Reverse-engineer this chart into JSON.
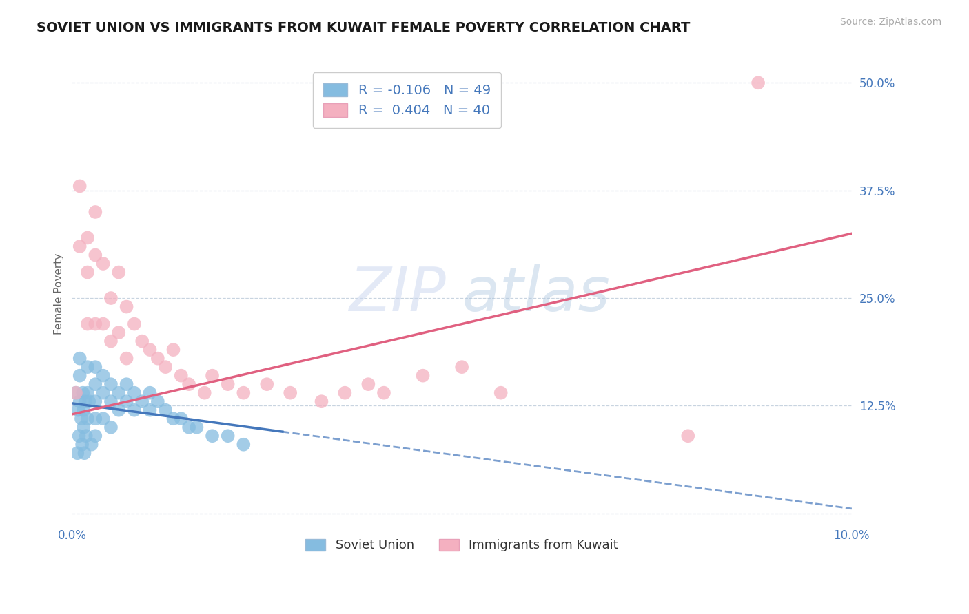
{
  "title": "SOVIET UNION VS IMMIGRANTS FROM KUWAIT FEMALE POVERTY CORRELATION CHART",
  "source": "Source: ZipAtlas.com",
  "ylabel": "Female Poverty",
  "xlim": [
    0.0,
    0.1
  ],
  "ylim": [
    -0.01,
    0.52
  ],
  "ytick_vals": [
    0.0,
    0.125,
    0.25,
    0.375,
    0.5
  ],
  "ytick_labels": [
    "",
    "12.5%",
    "25.0%",
    "37.5%",
    "50.0%"
  ],
  "xtick_vals": [
    0.0,
    0.1
  ],
  "xtick_labels": [
    "0.0%",
    "10.0%"
  ],
  "soviet_color": "#85bce0",
  "kuwait_color": "#f4b0c0",
  "soviet_line_color": "#4477bb",
  "kuwait_line_color": "#e06080",
  "background_color": "#ffffff",
  "grid_color": "#c8d4e0",
  "title_color": "#1a1a1a",
  "source_color": "#aaaaaa",
  "tick_color": "#4477bb",
  "watermark_zip_color": "#ccd8ec",
  "watermark_atlas_color": "#b8cce0",
  "legend_text_color": "#333333",
  "legend_RN_color": "#4477bb",
  "su_x": [
    0.0005,
    0.0007,
    0.0008,
    0.0009,
    0.001,
    0.001,
    0.001,
    0.0012,
    0.0013,
    0.0014,
    0.0015,
    0.0015,
    0.0016,
    0.0017,
    0.0018,
    0.002,
    0.002,
    0.002,
    0.0022,
    0.0025,
    0.003,
    0.003,
    0.003,
    0.003,
    0.003,
    0.004,
    0.004,
    0.004,
    0.005,
    0.005,
    0.005,
    0.006,
    0.006,
    0.007,
    0.007,
    0.008,
    0.008,
    0.009,
    0.01,
    0.01,
    0.011,
    0.012,
    0.013,
    0.014,
    0.015,
    0.016,
    0.018,
    0.02,
    0.022
  ],
  "su_y": [
    0.14,
    0.07,
    0.12,
    0.09,
    0.18,
    0.16,
    0.13,
    0.11,
    0.08,
    0.14,
    0.12,
    0.1,
    0.07,
    0.13,
    0.09,
    0.17,
    0.14,
    0.11,
    0.13,
    0.08,
    0.17,
    0.15,
    0.13,
    0.11,
    0.09,
    0.16,
    0.14,
    0.11,
    0.15,
    0.13,
    0.1,
    0.14,
    0.12,
    0.15,
    0.13,
    0.14,
    0.12,
    0.13,
    0.14,
    0.12,
    0.13,
    0.12,
    0.11,
    0.11,
    0.1,
    0.1,
    0.09,
    0.09,
    0.08
  ],
  "kw_x": [
    0.0005,
    0.001,
    0.001,
    0.002,
    0.002,
    0.002,
    0.003,
    0.003,
    0.003,
    0.004,
    0.004,
    0.005,
    0.005,
    0.006,
    0.006,
    0.007,
    0.007,
    0.008,
    0.009,
    0.01,
    0.011,
    0.012,
    0.013,
    0.014,
    0.015,
    0.017,
    0.018,
    0.02,
    0.022,
    0.025,
    0.028,
    0.032,
    0.035,
    0.038,
    0.04,
    0.045,
    0.05,
    0.055,
    0.079,
    0.088
  ],
  "kw_y": [
    0.14,
    0.38,
    0.31,
    0.32,
    0.28,
    0.22,
    0.35,
    0.3,
    0.22,
    0.29,
    0.22,
    0.25,
    0.2,
    0.28,
    0.21,
    0.24,
    0.18,
    0.22,
    0.2,
    0.19,
    0.18,
    0.17,
    0.19,
    0.16,
    0.15,
    0.14,
    0.16,
    0.15,
    0.14,
    0.15,
    0.14,
    0.13,
    0.14,
    0.15,
    0.14,
    0.16,
    0.17,
    0.14,
    0.09,
    0.5
  ],
  "su_line_x": [
    0.0,
    0.1
  ],
  "su_line_y_solid_end": 0.027,
  "kw_line_x": [
    0.0,
    0.1
  ],
  "kw_line_y": [
    0.115,
    0.325
  ]
}
